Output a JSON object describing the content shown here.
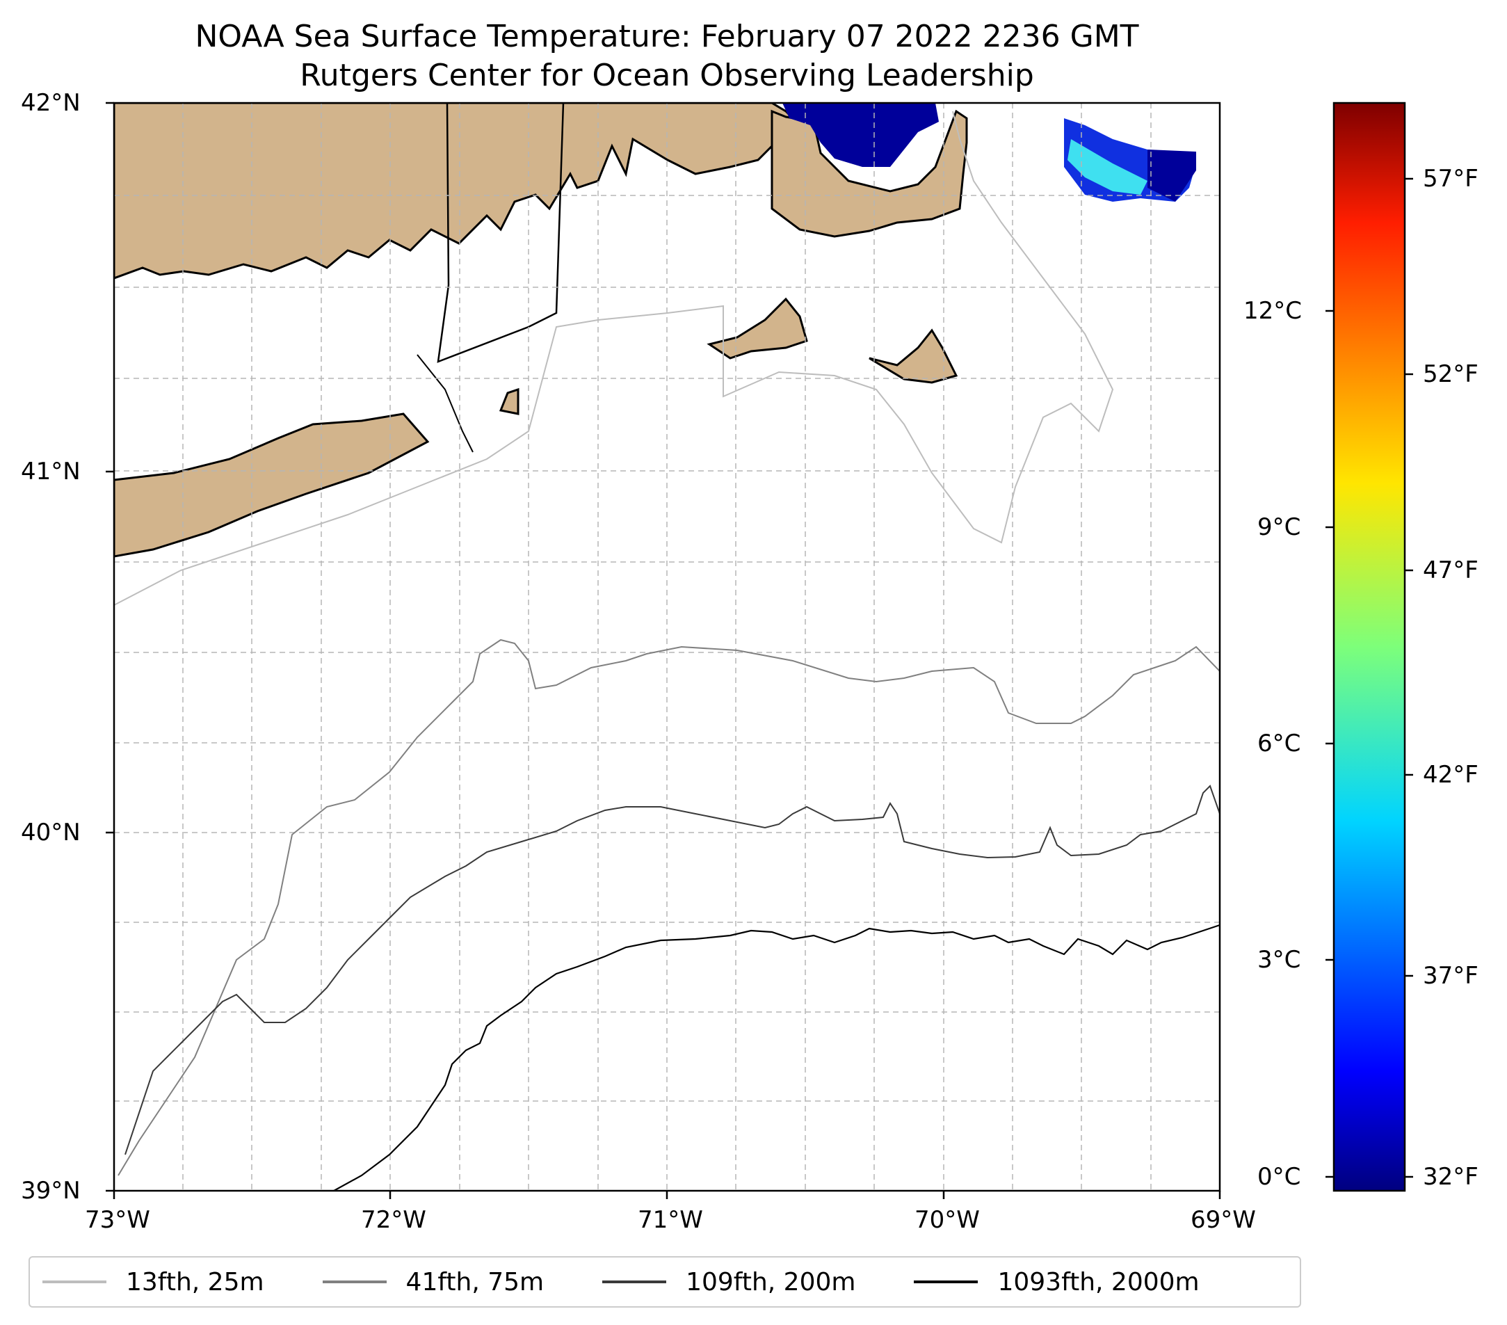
{
  "title": {
    "line1": "NOAA Sea Surface Temperature: February 07 2022 2236 GMT",
    "line2": "Rutgers Center for Ocean Observing Leadership"
  },
  "map": {
    "lat_range": [
      39,
      42
    ],
    "lon_range": [
      -73,
      -69
    ],
    "lat_ticks": [
      "42°N",
      "41°N",
      "40°N",
      "39°N"
    ],
    "lon_ticks": [
      "73°W",
      "72°W",
      "71°W",
      "70°W",
      "69°W"
    ],
    "land_color": "#d2b48c",
    "gridlines": "dashed"
  },
  "colorbar": {
    "celsius_ticks": [
      "12°C",
      "9°C",
      "6°C",
      "3°C",
      "0°C"
    ],
    "fahrenheit_ticks": [
      "57°F",
      "52°F",
      "47°F",
      "42°F",
      "37°F",
      "32°F"
    ],
    "colormap": "jet",
    "range_c": [
      -0.3,
      15
    ]
  },
  "legend": {
    "items": [
      {
        "label": "13fth, 25m",
        "color": "#bdbdbd"
      },
      {
        "label": "41fth, 75m",
        "color": "#808080"
      },
      {
        "label": "109fth, 200m",
        "color": "#3a3a3a"
      },
      {
        "label": "1093fth, 2000m",
        "color": "#000000"
      }
    ]
  }
}
